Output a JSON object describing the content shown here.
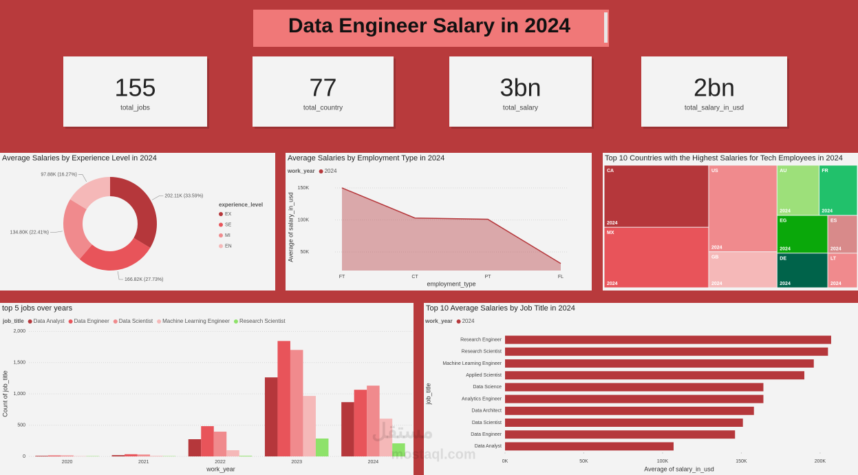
{
  "title": "Data Engineer Salary in 2024",
  "kpis": [
    {
      "value": 155,
      "label": "total_jobs"
    },
    {
      "value": 77,
      "label": "total_country"
    },
    {
      "value": "3bn",
      "label": "total_salary"
    },
    {
      "value": "2bn",
      "label": "total_salary_in_usd"
    }
  ],
  "watermark": [
    "مستقل",
    "mostaql.com"
  ],
  "chart_data": [
    {
      "type": "pie",
      "title": "Average Salaries by Experience Level in 2024",
      "legend_title": "experience_level",
      "categories": [
        "EX",
        "SE",
        "MI",
        "EN"
      ],
      "values": [
        202110,
        166820,
        134800,
        97880
      ],
      "value_labels": [
        "202.11K (33.59%)",
        "166.82K (27.73%)",
        "134.80K (22.41%)",
        "97.88K (16.27%)"
      ],
      "colors": [
        "#b5373b",
        "#e8545a",
        "#f08a8d",
        "#f5b8b8"
      ]
    },
    {
      "type": "area",
      "title": "Average Salaries by Employment Type in 2024",
      "legend_title": "work_year",
      "categories": [
        "FT",
        "CT",
        "PT",
        "FL"
      ],
      "series": [
        {
          "name": "2024",
          "color": "#b5373b",
          "values": [
            150000,
            103000,
            101000,
            32000
          ]
        }
      ],
      "ylim": [
        21000,
        165000
      ],
      "yticks": [
        {
          "value": 50000,
          "label": "50K"
        },
        {
          "value": 100000,
          "label": "100K"
        },
        {
          "value": 150000,
          "label": "150K"
        }
      ],
      "xlabel": "employment_type",
      "ylabel": "Average of salary_in_usd",
      "grid": true
    },
    {
      "type": "treemap",
      "title": "Top 10 Countries with the Highest Salaries for Tech Employees in 2024",
      "cell_label": "2024",
      "categories": [
        "CA",
        "MX",
        "US",
        "GB",
        "AU",
        "FR",
        "EG",
        "DE",
        "ES",
        "LT"
      ],
      "values": [
        203000,
        198000,
        185000,
        77000,
        66000,
        60000,
        60000,
        55000,
        35000,
        32000
      ],
      "colors": [
        "#b5373b",
        "#e8545a",
        "#f08a8d",
        "#f5b8b8",
        "#9de07a",
        "#21c16b",
        "#0aa80a",
        "#00634a",
        "#d88a8a",
        "#f08a8d"
      ]
    },
    {
      "type": "grouped_bar",
      "title": "top 5 jobs over years",
      "legend_title": "job_title",
      "categories": [
        "2020",
        "2021",
        "2022",
        "2023",
        "2024"
      ],
      "series": [
        {
          "name": "Data Analyst",
          "color": "#b5373b",
          "values": [
            10,
            20,
            275,
            1264,
            868
          ]
        },
        {
          "name": "Data Engineer",
          "color": "#e8545a",
          "values": [
            15,
            35,
            484,
            1846,
            1066
          ]
        },
        {
          "name": "Data Scientist",
          "color": "#f08a8d",
          "values": [
            15,
            30,
            396,
            1703,
            1132
          ]
        },
        {
          "name": "Machine Learning Engineer",
          "color": "#f5b8b8",
          "values": [
            5,
            10,
            99,
            967,
            604
          ]
        },
        {
          "name": "Research Scientist",
          "color": "#8ee26a",
          "values": [
            5,
            5,
            10,
            286,
            209
          ]
        }
      ],
      "ylim": [
        0,
        2070
      ],
      "yticks": [
        0,
        500,
        {
          "value": 1000,
          "label": "1,000"
        },
        {
          "value": 1500,
          "label": "1,500"
        },
        {
          "value": 2000,
          "label": "2,000"
        }
      ],
      "xlabel": "work_year",
      "ylabel": "Count of job_title",
      "grid": true
    },
    {
      "type": "hbar",
      "title": "Top 10 Average Salaries by Job Title in 2024",
      "legend_title": "work_year",
      "categories": [
        "Research Engineer",
        "Research Scientist",
        "Machine Learning Engineer",
        "Applied Scientist",
        "Data Science",
        "Analytics Engineer",
        "Data Architect",
        "Data Scientist",
        "Data Engineer",
        "Data Analyst"
      ],
      "series": [
        {
          "name": "2024",
          "color": "#b5373b",
          "values": [
            207000,
            205000,
            196000,
            190000,
            164000,
            164000,
            158000,
            151000,
            146000,
            107000
          ]
        }
      ],
      "xlim": [
        0,
        221000
      ],
      "xticks": [
        {
          "value": 0,
          "label": "0K"
        },
        {
          "value": 50000,
          "label": "50K"
        },
        {
          "value": 100000,
          "label": "100K"
        },
        {
          "value": 150000,
          "label": "150K"
        },
        {
          "value": 200000,
          "label": "200K"
        }
      ],
      "xlabel": "Average of salary_in_usd",
      "ylabel": "job_title"
    }
  ]
}
